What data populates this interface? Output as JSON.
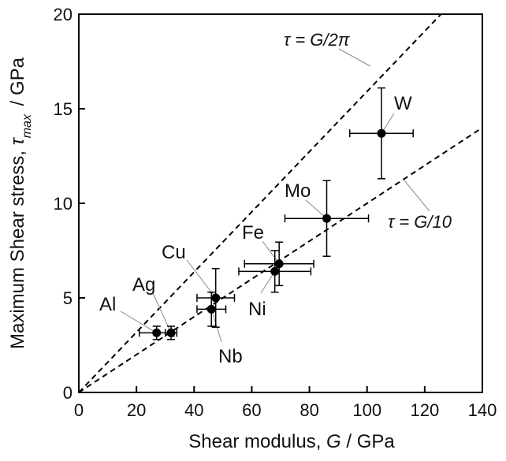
{
  "chart_data": {
    "type": "scatter",
    "title": "",
    "xlabel": {
      "prefix": "Shear modulus, ",
      "symbol": "G",
      "suffix": " / GPa"
    },
    "ylabel": {
      "prefix": "Maximum Shear stress, ",
      "symbol": "τ",
      "sub": "max",
      "suffix": " / GPa"
    },
    "xlim": [
      0,
      140
    ],
    "ylim": [
      0,
      20
    ],
    "xticks": [
      0,
      20,
      40,
      60,
      80,
      100,
      120,
      140
    ],
    "yticks": [
      0,
      5,
      10,
      15,
      20
    ],
    "grid": false,
    "points": [
      {
        "label": "Al",
        "x": 27,
        "y": 3.15,
        "xerr": 6,
        "yerr": 0.35
      },
      {
        "label": "Ag",
        "x": 32,
        "y": 3.15,
        "xerr": 2,
        "yerr": 0.35
      },
      {
        "label": "Nb",
        "x": 46,
        "y": 4.4,
        "xerr": 5,
        "yerr": 0.9
      },
      {
        "label": "Cu",
        "x": 47.5,
        "y": 5.0,
        "xerr": 6.5,
        "yerr": 1.55
      },
      {
        "label": "Ni",
        "x": 68,
        "y": 6.4,
        "xerr": 12.5,
        "yerr": 1.1
      },
      {
        "label": "Fe",
        "x": 69.5,
        "y": 6.8,
        "xerr": 12,
        "yerr": 1.15
      },
      {
        "label": "Mo",
        "x": 86,
        "y": 9.2,
        "xerr": 14.5,
        "yerr": 2.0
      },
      {
        "label": "W",
        "x": 105,
        "y": 13.7,
        "xerr": 11,
        "yerr": 2.4
      }
    ],
    "reference_lines": [
      {
        "name": "τ = G/2π",
        "symbol": "τ",
        "rhs": " = G/2π",
        "slope": 0.15915
      },
      {
        "name": "τ = G/10",
        "symbol": "τ",
        "rhs": " = G/10",
        "slope": 0.1
      }
    ]
  }
}
